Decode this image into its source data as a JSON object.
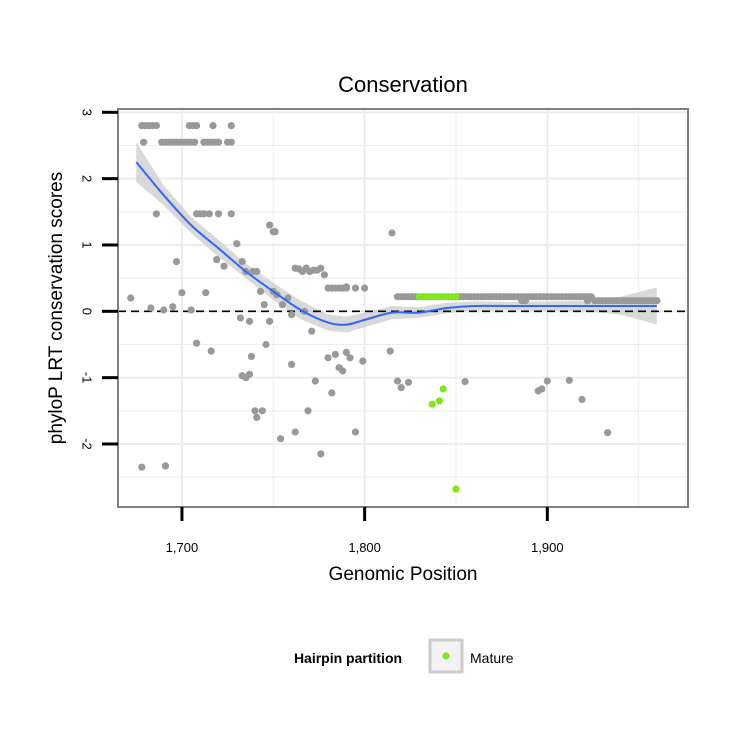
{
  "chart_data": {
    "type": "scatter",
    "title": "Conservation",
    "xlabel": "Genomic Position",
    "ylabel": "phyloP LRT conservation scores",
    "xlim": [
      1665,
      1977
    ],
    "ylim": [
      -2.95,
      3.05
    ],
    "x_ticks": [
      1700,
      1800,
      1900
    ],
    "x_tick_labels": [
      "1,700",
      "1,800",
      "1,900"
    ],
    "y_ticks": [
      -2,
      -1,
      0,
      1,
      2,
      3
    ],
    "y_tick_labels": [
      "-2",
      "-1",
      "0",
      "1",
      "2",
      "3"
    ],
    "reference_line": {
      "y": 0,
      "style": "dashed"
    },
    "legend": {
      "title": "Hairpin partition",
      "entries": [
        {
          "label": "Mature",
          "color": "#7fe81c"
        }
      ],
      "position": "bottom"
    },
    "colors": {
      "other_points": "#999999",
      "mature_points": "#7fe81c",
      "smooth_line": "#3366ff",
      "confidence_band": "#cccccc",
      "panel_border": "#808080",
      "grid": "#ececec"
    },
    "series": [
      {
        "name": "other",
        "color": "#999999",
        "points": [
          [
            1678,
            2.8
          ],
          [
            1680,
            2.8
          ],
          [
            1682,
            2.8
          ],
          [
            1684,
            2.8
          ],
          [
            1686,
            2.8
          ],
          [
            1679,
            2.55
          ],
          [
            1704,
            2.8
          ],
          [
            1706,
            2.8
          ],
          [
            1708,
            2.8
          ],
          [
            1717,
            2.8
          ],
          [
            1727,
            2.8
          ],
          [
            1689,
            2.55
          ],
          [
            1691,
            2.55
          ],
          [
            1693,
            2.55
          ],
          [
            1695,
            2.55
          ],
          [
            1697,
            2.55
          ],
          [
            1699,
            2.55
          ],
          [
            1701,
            2.55
          ],
          [
            1703,
            2.55
          ],
          [
            1705,
            2.55
          ],
          [
            1707,
            2.55
          ],
          [
            1712,
            2.55
          ],
          [
            1714,
            2.55
          ],
          [
            1716,
            2.55
          ],
          [
            1718,
            2.55
          ],
          [
            1720,
            2.55
          ],
          [
            1725,
            2.55
          ],
          [
            1727,
            2.55
          ],
          [
            1686,
            1.47
          ],
          [
            1708,
            1.47
          ],
          [
            1710,
            1.47
          ],
          [
            1712,
            1.47
          ],
          [
            1715,
            1.47
          ],
          [
            1720,
            1.47
          ],
          [
            1727,
            1.47
          ],
          [
            1672,
            0.2
          ],
          [
            1683,
            0.05
          ],
          [
            1690,
            0.02
          ],
          [
            1695,
            0.07
          ],
          [
            1697,
            0.75
          ],
          [
            1700,
            0.28
          ],
          [
            1705,
            0.02
          ],
          [
            1708,
            -0.48
          ],
          [
            1713,
            0.28
          ],
          [
            1716,
            -0.6
          ],
          [
            1719,
            0.78
          ],
          [
            1723,
            0.68
          ],
          [
            1730,
            1.02
          ],
          [
            1732,
            -0.1
          ],
          [
            1733,
            0.75
          ],
          [
            1735,
            0.6
          ],
          [
            1737,
            -0.15
          ],
          [
            1739,
            0.6
          ],
          [
            1741,
            0.6
          ],
          [
            1743,
            0.3
          ],
          [
            1745,
            0.1
          ],
          [
            1746,
            -0.5
          ],
          [
            1748,
            -0.15
          ],
          [
            1750,
            0.3
          ],
          [
            1752,
            0.25
          ],
          [
            1755,
            0.1
          ],
          [
            1758,
            0.2
          ],
          [
            1760,
            -0.05
          ],
          [
            1733,
            -0.97
          ],
          [
            1735,
            -1.0
          ],
          [
            1737,
            -0.95
          ],
          [
            1740,
            -1.5
          ],
          [
            1741,
            -1.6
          ],
          [
            1744,
            -1.5
          ],
          [
            1738,
            -0.68
          ],
          [
            1748,
            1.3
          ],
          [
            1750,
            1.2
          ],
          [
            1751,
            1.2
          ],
          [
            1754,
            -1.92
          ],
          [
            1760,
            -0.8
          ],
          [
            1762,
            -1.82
          ],
          [
            1767,
            0.0
          ],
          [
            1769,
            -1.5
          ],
          [
            1771,
            -0.3
          ],
          [
            1773,
            -1.05
          ],
          [
            1776,
            -2.15
          ],
          [
            1780,
            -0.7
          ],
          [
            1782,
            -1.23
          ],
          [
            1784,
            -0.65
          ],
          [
            1786,
            -0.85
          ],
          [
            1788,
            -0.9
          ],
          [
            1790,
            -0.62
          ],
          [
            1792,
            -0.7
          ],
          [
            1795,
            -1.82
          ],
          [
            1799,
            -0.75
          ],
          [
            1790,
            0.37
          ],
          [
            1762,
            0.65
          ],
          [
            1764,
            0.64
          ],
          [
            1766,
            0.6
          ],
          [
            1768,
            0.65
          ],
          [
            1770,
            0.6
          ],
          [
            1772,
            0.62
          ],
          [
            1774,
            0.62
          ],
          [
            1776,
            0.65
          ],
          [
            1778,
            0.55
          ],
          [
            1780,
            0.35
          ],
          [
            1782,
            0.35
          ],
          [
            1784,
            0.35
          ],
          [
            1786,
            0.35
          ],
          [
            1788,
            0.35
          ],
          [
            1790,
            0.35
          ],
          [
            1795,
            0.35
          ],
          [
            1800,
            0.35
          ],
          [
            1815,
            1.18
          ],
          [
            1814,
            -0.6
          ],
          [
            1818,
            -1.05
          ],
          [
            1820,
            -1.15
          ],
          [
            1824,
            -1.07
          ],
          [
            1855,
            -1.06
          ],
          [
            1895,
            -1.2
          ],
          [
            1897,
            -1.17
          ],
          [
            1900,
            -1.05
          ],
          [
            1912,
            -1.04
          ],
          [
            1919,
            -1.33
          ],
          [
            1933,
            -1.83
          ],
          [
            1818,
            0.22
          ],
          [
            1820,
            0.22
          ],
          [
            1822,
            0.22
          ],
          [
            1824,
            0.22
          ],
          [
            1826,
            0.22
          ],
          [
            1828,
            0.22
          ],
          [
            1852,
            0.22
          ],
          [
            1854,
            0.22
          ],
          [
            1856,
            0.22
          ],
          [
            1858,
            0.22
          ],
          [
            1860,
            0.22
          ],
          [
            1862,
            0.22
          ],
          [
            1864,
            0.22
          ],
          [
            1866,
            0.22
          ],
          [
            1868,
            0.22
          ],
          [
            1870,
            0.22
          ],
          [
            1872,
            0.22
          ],
          [
            1874,
            0.22
          ],
          [
            1876,
            0.22
          ],
          [
            1878,
            0.22
          ],
          [
            1880,
            0.22
          ],
          [
            1882,
            0.22
          ],
          [
            1884,
            0.22
          ],
          [
            1886,
            0.22
          ],
          [
            1888,
            0.22
          ],
          [
            1890,
            0.22
          ],
          [
            1892,
            0.22
          ],
          [
            1894,
            0.22
          ],
          [
            1896,
            0.22
          ],
          [
            1898,
            0.22
          ],
          [
            1900,
            0.22
          ],
          [
            1902,
            0.22
          ],
          [
            1904,
            0.22
          ],
          [
            1906,
            0.22
          ],
          [
            1908,
            0.22
          ],
          [
            1910,
            0.22
          ],
          [
            1912,
            0.22
          ],
          [
            1914,
            0.22
          ],
          [
            1916,
            0.22
          ],
          [
            1918,
            0.22
          ],
          [
            1920,
            0.22
          ],
          [
            1922,
            0.22
          ],
          [
            1924,
            0.22
          ],
          [
            1886,
            0.16
          ],
          [
            1888,
            0.16
          ],
          [
            1922,
            0.16
          ],
          [
            1926,
            0.16
          ],
          [
            1928,
            0.16
          ],
          [
            1930,
            0.16
          ],
          [
            1932,
            0.16
          ],
          [
            1934,
            0.16
          ],
          [
            1936,
            0.16
          ],
          [
            1938,
            0.16
          ],
          [
            1940,
            0.16
          ],
          [
            1942,
            0.16
          ],
          [
            1944,
            0.16
          ],
          [
            1946,
            0.16
          ],
          [
            1948,
            0.16
          ],
          [
            1950,
            0.16
          ],
          [
            1952,
            0.16
          ],
          [
            1954,
            0.16
          ],
          [
            1956,
            0.16
          ],
          [
            1958,
            0.16
          ],
          [
            1960,
            0.16
          ],
          [
            1678,
            -2.35
          ],
          [
            1691,
            -2.33
          ]
        ]
      },
      {
        "name": "Mature",
        "color": "#7fe81c",
        "points": [
          [
            1830,
            0.22
          ],
          [
            1832,
            0.22
          ],
          [
            1834,
            0.22
          ],
          [
            1836,
            0.22
          ],
          [
            1838,
            0.22
          ],
          [
            1840,
            0.22
          ],
          [
            1842,
            0.22
          ],
          [
            1844,
            0.22
          ],
          [
            1846,
            0.22
          ],
          [
            1848,
            0.22
          ],
          [
            1850,
            0.22
          ],
          [
            1837,
            -1.4
          ],
          [
            1841,
            -1.35
          ],
          [
            1843,
            -1.17
          ],
          [
            1850,
            -2.68
          ]
        ]
      }
    ],
    "smooth_fit": {
      "x": [
        1675,
        1690,
        1705,
        1720,
        1735,
        1750,
        1765,
        1780,
        1790,
        1800,
        1815,
        1830,
        1845,
        1860,
        1880,
        1900,
        1920,
        1940,
        1960
      ],
      "y": [
        2.25,
        1.75,
        1.3,
        0.95,
        0.6,
        0.3,
        0.02,
        -0.17,
        -0.2,
        -0.13,
        -0.02,
        -0.02,
        0.05,
        0.08,
        0.08,
        0.08,
        0.08,
        0.08,
        0.08
      ],
      "lower": [
        1.95,
        1.6,
        1.18,
        0.82,
        0.5,
        0.17,
        -0.12,
        -0.29,
        -0.32,
        -0.24,
        -0.12,
        -0.1,
        -0.03,
        0.01,
        0.02,
        0.01,
        0.0,
        -0.05,
        -0.2
      ],
      "upper": [
        2.55,
        1.9,
        1.42,
        1.08,
        0.72,
        0.43,
        0.16,
        -0.05,
        -0.08,
        -0.02,
        0.08,
        0.06,
        0.13,
        0.15,
        0.14,
        0.15,
        0.16,
        0.22,
        0.36
      ]
    }
  }
}
